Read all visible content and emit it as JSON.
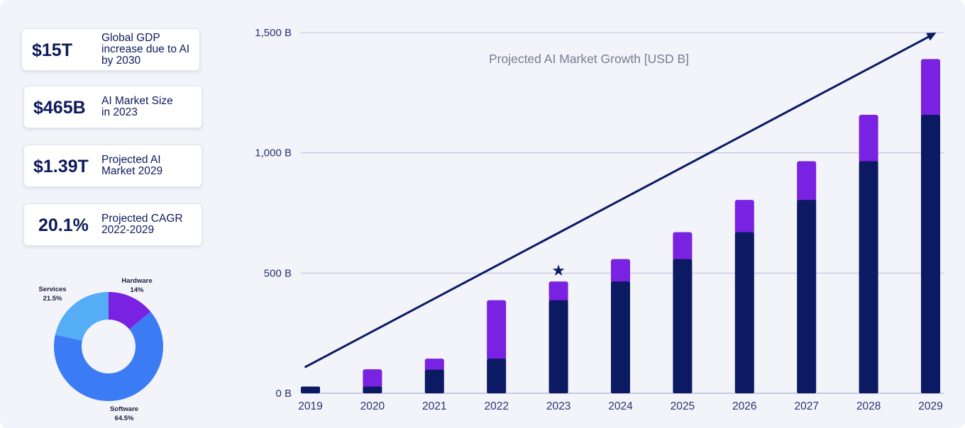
{
  "stats": [
    {
      "value": "$15T",
      "label": "Global GDP\nincrease due to AI\nby 2030"
    },
    {
      "value": "$465B",
      "label": "AI Market Size\nin 2023"
    },
    {
      "value": "$1.39T",
      "label": "Projected AI\nMarket 2029"
    },
    {
      "value": "20.1%",
      "label": "Projected CAGR\n2022-2029"
    }
  ],
  "colors": {
    "navy": "#0b1a63",
    "purple": "#7a22e2",
    "grid": "#b9bedc",
    "axis_text": "#2a3270",
    "title_text": "#777c93",
    "donut_hardware": "#7a22e2",
    "donut_software": "#3b7cf5",
    "donut_services": "#55adf6"
  },
  "chart_data": [
    {
      "type": "bar",
      "stacked": true,
      "title": "Projected AI Market Growth [USD B]",
      "categories": [
        "2019",
        "2020",
        "2021",
        "2022",
        "2023",
        "2024",
        "2025",
        "2026",
        "2027",
        "2028",
        "2029"
      ],
      "series": [
        {
          "values": [
            28,
            28,
            98,
            144,
            387,
            465,
            558,
            670,
            804,
            965,
            1158
          ]
        },
        {
          "values": [
            0,
            72,
            46,
            243,
            78,
            93,
            112,
            134,
            161,
            193,
            232
          ]
        }
      ],
      "totals": [
        28,
        100,
        144,
        387,
        465,
        558,
        670,
        804,
        965,
        1158,
        1390
      ],
      "ylim": [
        0,
        1500
      ],
      "yticks": [
        0,
        500,
        1000,
        1500
      ],
      "ytick_labels": [
        "0 B",
        "500 B",
        "1,000 B",
        "1,500 B"
      ],
      "grid": true,
      "highlight": {
        "category": "2023",
        "marker": "★"
      },
      "trend_arrow": {
        "from": {
          "x": "2019",
          "y": 108
        },
        "to": {
          "x": "2029",
          "y": 1500
        }
      }
    },
    {
      "type": "pie",
      "donut": true,
      "slices": [
        {
          "label": "Hardware",
          "percent_label": "14%",
          "value": 14
        },
        {
          "label": "Software",
          "percent_label": "64.5%",
          "value": 64.5
        },
        {
          "label": "Services",
          "percent_label": "21.5%",
          "value": 21.5
        }
      ]
    }
  ]
}
